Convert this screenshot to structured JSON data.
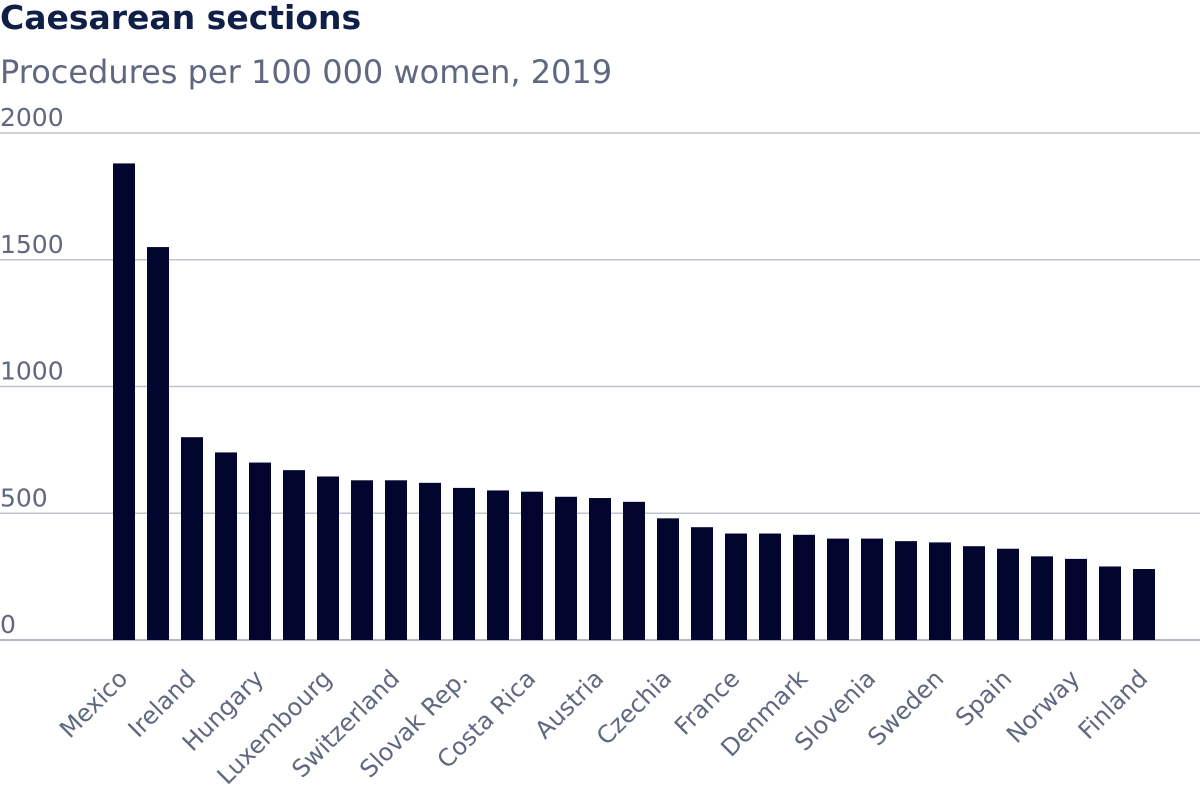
{
  "chart_data": {
    "type": "bar",
    "title": "Caesarean sections",
    "subtitle": "Procedures per 100 000 women, 2019",
    "xlabel": "",
    "ylabel": "",
    "ylim": [
      0,
      2000
    ],
    "yticks": [
      0,
      500,
      1000,
      1500,
      2000
    ],
    "grid": true,
    "bar_color": "#02062e",
    "categories": [
      "Mexico",
      "",
      "Ireland",
      "",
      "Hungary",
      "",
      "Luxembourg",
      "",
      "Switzerland",
      "",
      "Slovak Rep.",
      "",
      "Costa Rica",
      "",
      "Austria",
      "",
      "Czechia",
      "",
      "France",
      "",
      "Denmark",
      "",
      "Slovenia",
      "",
      "Sweden",
      "",
      "Spain",
      "",
      "Norway",
      "",
      "Finland"
    ],
    "values": [
      1880,
      1550,
      800,
      740,
      700,
      670,
      645,
      630,
      630,
      620,
      600,
      590,
      585,
      565,
      560,
      545,
      480,
      445,
      420,
      420,
      415,
      400,
      400,
      390,
      385,
      370,
      360,
      330,
      320,
      290,
      280
    ]
  }
}
